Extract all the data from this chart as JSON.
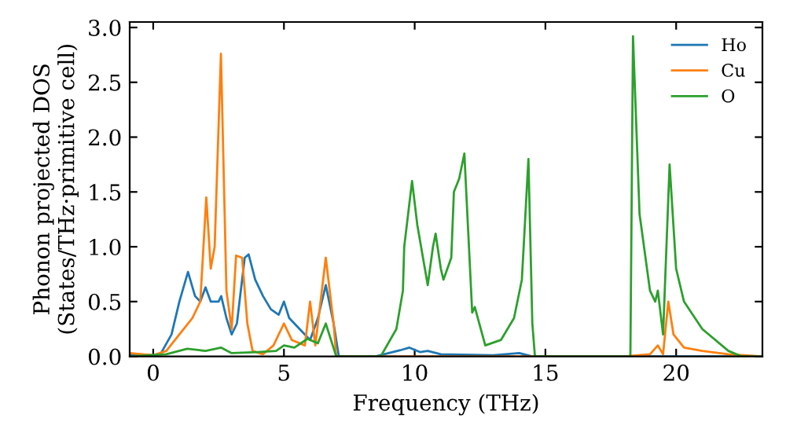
{
  "chart_data": {
    "type": "line",
    "xlabel": "Frequency (THz)",
    "ylabel": "Phonon projected DOS\n(States/THz·primitive cell)",
    "xlim": [
      -0.9,
      23.3
    ],
    "ylim": [
      0,
      3.05
    ],
    "xticks": [
      0,
      5,
      10,
      15,
      20
    ],
    "yticks": [
      {
        "value": 0,
        "label": "0.0"
      },
      {
        "value": 0.5,
        "label": "0.5"
      },
      {
        "value": 1,
        "label": "1.0"
      },
      {
        "value": 1.5,
        "label": "1.5"
      },
      {
        "value": 2,
        "label": "2.0"
      },
      {
        "value": 2.5,
        "label": "2.5"
      },
      {
        "value": 3,
        "label": "3.0"
      }
    ],
    "legend": "top right",
    "grid": false,
    "series": [
      {
        "name": "Ho",
        "color": "#1f77b4",
        "x": [
          -0.9,
          0,
          0.3,
          0.7,
          1.0,
          1.33,
          1.6,
          1.8,
          2.0,
          2.2,
          2.5,
          2.6,
          2.8,
          3.0,
          3.2,
          3.5,
          3.65,
          3.9,
          4.2,
          4.5,
          4.8,
          5.0,
          5.2,
          5.6,
          6.0,
          6.3,
          6.6,
          6.9,
          7.1,
          8.5,
          9.5,
          9.8,
          10.2,
          10.5,
          11,
          13,
          14,
          14.5,
          18,
          23.3
        ],
        "values": [
          0.02,
          0.01,
          0.03,
          0.2,
          0.5,
          0.77,
          0.55,
          0.5,
          0.63,
          0.5,
          0.5,
          0.55,
          0.35,
          0.2,
          0.3,
          0.9,
          0.93,
          0.7,
          0.55,
          0.43,
          0.38,
          0.5,
          0.35,
          0.25,
          0.15,
          0.35,
          0.65,
          0.3,
          0.0,
          0.0,
          0.06,
          0.08,
          0.04,
          0.05,
          0.02,
          0.01,
          0.03,
          0.0,
          0.0,
          0.0
        ]
      },
      {
        "name": "Cu",
        "color": "#ff7f0e",
        "x": [
          -0.9,
          0,
          0.5,
          1.0,
          1.5,
          1.8,
          2.03,
          2.2,
          2.35,
          2.59,
          2.8,
          3.0,
          3.17,
          3.4,
          3.6,
          3.8,
          4.2,
          4.6,
          5.0,
          5.3,
          5.8,
          6.0,
          6.2,
          6.6,
          6.9,
          7.0,
          14.5,
          18,
          19,
          19.3,
          19.5,
          19.7,
          19.9,
          20.3,
          21,
          22,
          23.3
        ],
        "values": [
          0.03,
          0.01,
          0.05,
          0.2,
          0.35,
          0.5,
          1.45,
          0.8,
          1.0,
          2.76,
          0.6,
          0.25,
          0.92,
          0.9,
          0.3,
          0.05,
          0.02,
          0.1,
          0.3,
          0.15,
          0.1,
          0.5,
          0.1,
          0.9,
          0.3,
          0.0,
          0.0,
          0.0,
          0.02,
          0.1,
          0.02,
          0.5,
          0.2,
          0.08,
          0.05,
          0.02,
          0.0
        ]
      },
      {
        "name": "O",
        "color": "#2ca02c",
        "x": [
          -0.9,
          0.5,
          1.3,
          2,
          2.6,
          3,
          4,
          4.7,
          5.0,
          5.4,
          5.9,
          6.3,
          6.6,
          7.0,
          8.7,
          9.3,
          9.55,
          9.6,
          9.9,
          10.1,
          10.5,
          10.7,
          10.8,
          11,
          11.1,
          11.4,
          11.5,
          11.7,
          11.9,
          12.2,
          12.3,
          12.7,
          13.3,
          13.8,
          14.1,
          14.35,
          14.5,
          14.6,
          18.25,
          18.35,
          18.6,
          19.0,
          19.2,
          19.3,
          19.5,
          19.75,
          20.0,
          20.3,
          21,
          22.0,
          22.5,
          23.3
        ],
        "values": [
          0,
          0.02,
          0.07,
          0.05,
          0.08,
          0.03,
          0.04,
          0.05,
          0.1,
          0.08,
          0.16,
          0.12,
          0.3,
          0.0,
          0.0,
          0.25,
          0.6,
          1.0,
          1.6,
          1.2,
          0.65,
          1.0,
          1.12,
          0.8,
          0.7,
          0.9,
          1.5,
          1.62,
          1.85,
          0.4,
          0.45,
          0.1,
          0.15,
          0.35,
          0.7,
          1.8,
          0.3,
          0.0,
          0.0,
          2.92,
          1.3,
          0.6,
          0.5,
          0.6,
          0.2,
          1.75,
          0.8,
          0.5,
          0.25,
          0.05,
          0.0,
          0.0
        ]
      }
    ]
  }
}
